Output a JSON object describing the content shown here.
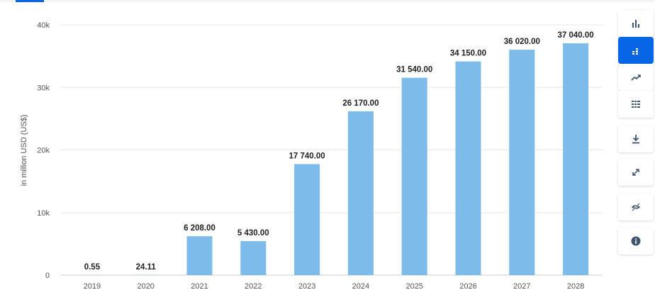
{
  "chart_data": {
    "type": "bar",
    "categories": [
      "2019",
      "2020",
      "2021",
      "2022",
      "2023",
      "2024",
      "2025",
      "2026",
      "2027",
      "2028"
    ],
    "values": [
      0.55,
      24.11,
      6208.0,
      5430.0,
      17740.0,
      26170.0,
      31540.0,
      34150.0,
      36020.0,
      37040.0
    ],
    "data_labels": [
      "0.55",
      "24.11",
      "6 208.00",
      "5 430.00",
      "17 740.00",
      "26 170.00",
      "31 540.00",
      "34 150.00",
      "36 020.00",
      "37 040.00"
    ],
    "ylabel": "in million USD (US$)",
    "ylim": [
      0,
      40000
    ],
    "yticks": [
      0,
      10000,
      20000,
      30000,
      40000
    ],
    "ytick_labels": [
      "0",
      "10k",
      "20k",
      "30k",
      "40k"
    ],
    "grid": true,
    "bar_color": "#7dbbea"
  },
  "toolbar": {
    "buttons": [
      {
        "name": "bar-chart-icon",
        "active": false
      },
      {
        "name": "stacked-bar-icon",
        "active": true
      },
      {
        "name": "line-chart-icon",
        "active": false
      },
      {
        "name": "table-icon",
        "active": false
      },
      {
        "name": "download-icon",
        "active": false
      },
      {
        "name": "fullscreen-icon",
        "active": false
      },
      {
        "name": "hide-icon",
        "active": false
      },
      {
        "name": "info-icon",
        "active": false
      }
    ],
    "accent_color": "#0666e5"
  }
}
